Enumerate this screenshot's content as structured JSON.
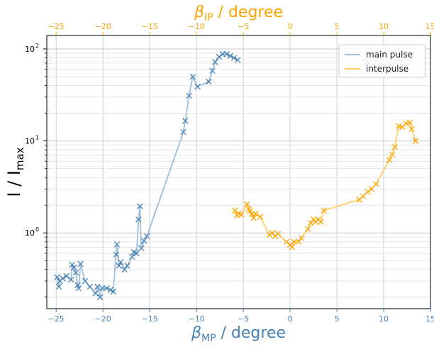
{
  "chart_data": {
    "type": "line",
    "y_scale": "log",
    "ylim": [
      0.15,
      140
    ],
    "grid": true,
    "legend_position": "top-right",
    "ylabel_main": "I / I",
    "ylabel_sub": "max",
    "xlabel_bottom_main": "β",
    "xlabel_bottom_sub": "MP",
    "xlabel_bottom_unit": " / degree",
    "xlabel_top_main": "β",
    "xlabel_top_sub": "IP",
    "xlabel_top_unit": " / degree",
    "bottom_axis": {
      "range": [
        -26,
        15
      ],
      "ticks": [
        -25,
        -20,
        -15,
        -10,
        -5,
        0,
        5,
        10,
        15
      ],
      "tick_labels": [
        "−25",
        "−20",
        "−15",
        "−10",
        "−5",
        "0",
        "5",
        "10",
        "15"
      ],
      "color": "#4682b4"
    },
    "top_axis": {
      "range": [
        -26,
        15
      ],
      "ticks": [
        -25,
        -20,
        -15,
        -10,
        -5,
        0,
        5,
        10,
        15
      ],
      "tick_labels": [
        "−25",
        "−20",
        "−15",
        "−10",
        "−5",
        "0",
        "5",
        "10",
        "15"
      ],
      "color": "#ffa500"
    },
    "y_ticks": [
      {
        "value": 1,
        "label": "10",
        "exp": "0"
      },
      {
        "value": 10,
        "label": "10",
        "exp": "1"
      },
      {
        "value": 100,
        "label": "10",
        "exp": "2"
      }
    ],
    "series": [
      {
        "name": "main pulse",
        "axis": "bottom",
        "line_color": "#9fbfd9",
        "marker_color": "#4682b4",
        "points": [
          [
            -24.9,
            0.33
          ],
          [
            -24.7,
            0.26
          ],
          [
            -24.6,
            0.3
          ],
          [
            -24.3,
            0.32
          ],
          [
            -23.9,
            0.34
          ],
          [
            -23.4,
            0.31
          ],
          [
            -23.3,
            0.45
          ],
          [
            -23.1,
            0.42
          ],
          [
            -22.9,
            0.37
          ],
          [
            -22.7,
            0.27
          ],
          [
            -22.6,
            0.25
          ],
          [
            -22.4,
            0.46
          ],
          [
            -21.9,
            0.3
          ],
          [
            -21.4,
            0.26
          ],
          [
            -20.8,
            0.22
          ],
          [
            -20.6,
            0.26
          ],
          [
            -20.3,
            0.2
          ],
          [
            -20.1,
            0.25
          ],
          [
            -19.6,
            0.25
          ],
          [
            -19.2,
            0.24
          ],
          [
            -18.9,
            0.23
          ],
          [
            -18.6,
            0.58
          ],
          [
            -18.5,
            0.75
          ],
          [
            -18.3,
            0.44
          ],
          [
            -18.1,
            0.48
          ],
          [
            -17.7,
            0.4
          ],
          [
            -17.4,
            0.44
          ],
          [
            -16.9,
            0.55
          ],
          [
            -16.7,
            0.62
          ],
          [
            -16.4,
            0.6
          ],
          [
            -16.2,
            1.4
          ],
          [
            -16.05,
            1.95
          ],
          [
            -15.9,
            0.68
          ],
          [
            -15.6,
            0.82
          ],
          [
            -15.3,
            0.92
          ],
          [
            -11.4,
            12.5
          ],
          [
            -11.2,
            16.5
          ],
          [
            -10.8,
            31.0
          ],
          [
            -10.4,
            50.0
          ],
          [
            -9.9,
            39.0
          ],
          [
            -8.7,
            44.0
          ],
          [
            -8.3,
            58.0
          ],
          [
            -8.0,
            72.0
          ],
          [
            -7.6,
            82.0
          ],
          [
            -7.2,
            88.0
          ],
          [
            -6.8,
            88.0
          ],
          [
            -6.4,
            84.0
          ],
          [
            -6.0,
            80.0
          ],
          [
            -5.6,
            76.0
          ]
        ]
      },
      {
        "name": "interpulse",
        "axis": "top",
        "line_color": "#ffcc66",
        "marker_color": "#ffa500",
        "points": [
          [
            -5.9,
            1.75
          ],
          [
            -5.7,
            1.55
          ],
          [
            -5.5,
            1.62
          ],
          [
            -5.2,
            1.58
          ],
          [
            -4.6,
            2.05
          ],
          [
            -4.4,
            1.82
          ],
          [
            -4.3,
            1.72
          ],
          [
            -4.1,
            1.6
          ],
          [
            -3.9,
            1.45
          ],
          [
            -3.7,
            1.62
          ],
          [
            -3.2,
            1.5
          ],
          [
            -2.2,
            0.95
          ],
          [
            -1.9,
            1.0
          ],
          [
            -1.6,
            0.92
          ],
          [
            -1.3,
            0.98
          ],
          [
            -0.4,
            0.8
          ],
          [
            0.0,
            0.74
          ],
          [
            0.2,
            0.7
          ],
          [
            0.4,
            0.8
          ],
          [
            0.9,
            0.8
          ],
          [
            1.2,
            0.88
          ],
          [
            1.9,
            1.1
          ],
          [
            2.2,
            1.28
          ],
          [
            2.5,
            1.4
          ],
          [
            2.7,
            1.32
          ],
          [
            3.0,
            1.4
          ],
          [
            3.3,
            1.32
          ],
          [
            3.6,
            1.75
          ],
          [
            7.4,
            2.3
          ],
          [
            7.8,
            2.5
          ],
          [
            8.3,
            2.8
          ],
          [
            8.7,
            3.0
          ],
          [
            9.2,
            3.4
          ],
          [
            10.6,
            6.2
          ],
          [
            10.9,
            7.1
          ],
          [
            11.2,
            8.6
          ],
          [
            11.6,
            14.5
          ],
          [
            12.0,
            14.2
          ],
          [
            12.4,
            15.5
          ],
          [
            12.8,
            15.8
          ],
          [
            13.0,
            13.5
          ],
          [
            13.4,
            10.0
          ]
        ]
      }
    ]
  }
}
